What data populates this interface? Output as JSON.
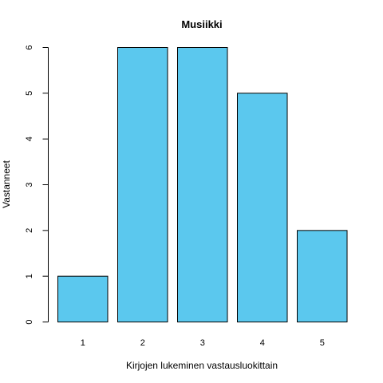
{
  "chart_data": {
    "type": "bar",
    "title": "Musiikki",
    "xlabel": "Kirjojen lukeminen vastausluokittain",
    "ylabel": "Vastanneet",
    "categories": [
      "1",
      "2",
      "3",
      "4",
      "5"
    ],
    "values": [
      1,
      6,
      6,
      5,
      2
    ],
    "ylim": [
      0,
      6
    ],
    "yticks": [
      "0",
      "1",
      "2",
      "3",
      "4",
      "5",
      "6"
    ],
    "bar_color": "#5BC8EE",
    "bar_border_color": "#000000",
    "grid": false,
    "legend": false
  }
}
